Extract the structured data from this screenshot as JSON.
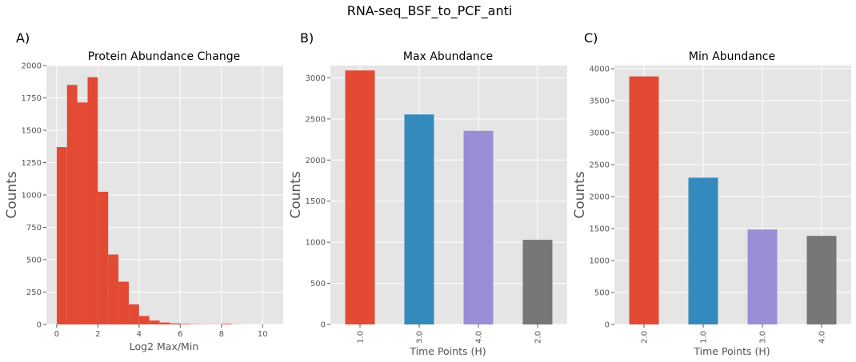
{
  "figure": {
    "suptitle": "RNA-seq_BSF_to_PCF_anti",
    "background": "#ffffff",
    "axes_bg": "#e5e5e5",
    "grid_color": "#ffffff",
    "tick_color": "#555555"
  },
  "chart_data": [
    {
      "type": "bar",
      "panel_label": "A)",
      "title": "Protein Abundance Change",
      "xlabel": "Log2 Max/Min",
      "ylabel": "Counts",
      "histogram": true,
      "bin_edges": [
        0,
        0.5,
        1.0,
        1.5,
        2.0,
        2.5,
        3.0,
        3.5,
        4.0,
        4.5,
        5.0,
        5.5,
        6.0,
        6.5,
        7.0,
        7.5,
        8.0,
        8.5,
        9.0,
        9.5,
        10.0,
        10.5
      ],
      "values": [
        1370,
        1850,
        1715,
        1910,
        1025,
        540,
        330,
        155,
        65,
        30,
        15,
        8,
        4,
        2,
        1,
        1,
        5,
        1,
        0,
        0,
        0
      ],
      "xlim": [
        -0.5,
        11.0
      ],
      "ylim": [
        0,
        2000
      ],
      "xticks": [
        0,
        2,
        4,
        6,
        8,
        10
      ],
      "yticks": [
        0,
        250,
        500,
        750,
        1000,
        1250,
        1500,
        1750,
        2000
      ],
      "grid": true,
      "colors": [
        "#E24A33"
      ]
    },
    {
      "type": "bar",
      "panel_label": "B)",
      "title": "Max Abundance",
      "xlabel": "Time Points (H)",
      "ylabel": "Counts",
      "categories": [
        "1.0",
        "3.0",
        "4.0",
        "2.0"
      ],
      "values": [
        3090,
        2555,
        2355,
        1030
      ],
      "ylim": [
        0,
        3150
      ],
      "yticks": [
        0,
        500,
        1000,
        1500,
        2000,
        2500,
        3000
      ],
      "grid": true,
      "colors": [
        "#E24A33",
        "#348ABD",
        "#988ED5",
        "#777777"
      ]
    },
    {
      "type": "bar",
      "panel_label": "C)",
      "title": "Min Abundance",
      "xlabel": "Time Points (H)",
      "ylabel": "Counts",
      "categories": [
        "2.0",
        "1.0",
        "3.0",
        "4.0"
      ],
      "values": [
        3880,
        2295,
        1485,
        1385
      ],
      "ylim": [
        0,
        4050
      ],
      "yticks": [
        0,
        500,
        1000,
        1500,
        2000,
        2500,
        3000,
        3500,
        4000
      ],
      "grid": true,
      "colors": [
        "#E24A33",
        "#348ABD",
        "#988ED5",
        "#777777"
      ]
    }
  ]
}
